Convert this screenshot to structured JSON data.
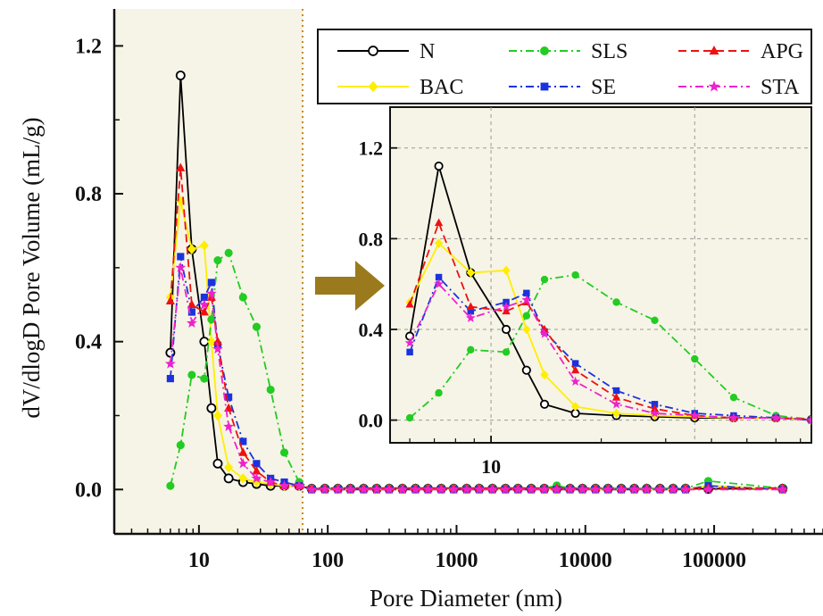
{
  "colors": {
    "shade": "#f6f4e6",
    "arrow": "#9a7a1c",
    "divider": "#c58a2a"
  },
  "chart_data": [
    {
      "type": "line",
      "title": "",
      "xlabel": "Pore Diameter (nm)",
      "ylabel": "dV/dlogD Pore Volume (mL/g)",
      "xscale": "log",
      "xlim": [
        2.2,
        700000
      ],
      "ylim": [
        -0.12,
        1.3
      ],
      "xticks": [
        10,
        100,
        1000,
        10000,
        100000
      ],
      "xtick_labels": [
        "10",
        "100",
        "1000",
        "10000",
        "100000"
      ],
      "yticks": [
        0.0,
        0.4,
        0.8,
        1.2
      ],
      "ytick_labels": [
        "0.0",
        "0.4",
        "0.8",
        "1.2"
      ],
      "shaded_region_x": [
        2.2,
        60
      ],
      "legend_position": "top-right",
      "legend": [
        "N",
        "SLS",
        "APG",
        "BAC",
        "SE",
        "STA"
      ],
      "series": [
        {
          "name": "N",
          "color": "#000000",
          "marker": "open-circle",
          "dash": "solid",
          "x": [
            6,
            7.2,
            8.8,
            11,
            12.5,
            14,
            17,
            22,
            28,
            36,
            46,
            60
          ],
          "y": [
            0.37,
            1.12,
            0.65,
            0.4,
            0.22,
            0.07,
            0.03,
            0.02,
            0.015,
            0.01,
            0.01,
            0.01
          ]
        },
        {
          "name": "BAC",
          "color": "#ffee00",
          "marker": "diamond",
          "dash": "solid",
          "x": [
            6,
            7.2,
            8.8,
            11,
            12.5,
            14,
            17,
            22,
            28,
            36,
            46,
            60
          ],
          "y": [
            0.52,
            0.78,
            0.65,
            0.66,
            0.4,
            0.2,
            0.06,
            0.03,
            0.02,
            0.015,
            0.01,
            0.01
          ]
        },
        {
          "name": "SLS",
          "color": "#22cc22",
          "marker": "circle",
          "dash": "dashdot",
          "x": [
            6,
            7.2,
            8.8,
            11,
            12.5,
            14,
            17,
            22,
            28,
            36,
            46,
            60
          ],
          "y": [
            0.01,
            0.12,
            0.31,
            0.3,
            0.46,
            0.62,
            0.64,
            0.52,
            0.44,
            0.27,
            0.1,
            0.02
          ]
        },
        {
          "name": "SE",
          "color": "#1a33dd",
          "marker": "square",
          "dash": "dashdot",
          "x": [
            6,
            7.2,
            8.8,
            11,
            12.5,
            14,
            17,
            22,
            28,
            36,
            46,
            60
          ],
          "y": [
            0.3,
            0.63,
            0.48,
            0.52,
            0.56,
            0.39,
            0.25,
            0.13,
            0.07,
            0.03,
            0.02,
            0.01
          ]
        },
        {
          "name": "APG",
          "color": "#ee1111",
          "marker": "triangle",
          "dash": "dashed",
          "x": [
            6,
            7.2,
            8.8,
            11,
            12.5,
            14,
            17,
            22,
            28,
            36,
            46,
            60
          ],
          "y": [
            0.51,
            0.87,
            0.5,
            0.48,
            0.52,
            0.4,
            0.22,
            0.1,
            0.05,
            0.02,
            0.01,
            0.01
          ]
        },
        {
          "name": "STA",
          "color": "#ee22cc",
          "marker": "star",
          "dash": "dashdot",
          "x": [
            6,
            7.2,
            8.8,
            11,
            12.5,
            14,
            17,
            22,
            28,
            36,
            46,
            60
          ],
          "y": [
            0.34,
            0.6,
            0.45,
            0.5,
            0.53,
            0.38,
            0.17,
            0.07,
            0.03,
            0.02,
            0.01,
            0.01
          ]
        }
      ],
      "tail": {
        "x": [
          75,
          95,
          120,
          150,
          190,
          240,
          300,
          380,
          480,
          600,
          760,
          950,
          1200,
          1500,
          1900,
          2400,
          3000,
          3800,
          4800,
          6000,
          7600,
          9500,
          12000,
          15000,
          19000,
          24000,
          30000,
          38000,
          48000,
          60000,
          90000,
          340000
        ],
        "offsets": [
          0.002,
          -0.001,
          0.003,
          0.0,
          0.004,
          -0.002
        ],
        "bumps": {
          "SLS": {
            "90000": 0.02,
            "6000": 0.008
          },
          "BAC": {
            "90000": 0.012
          },
          "SE": {
            "90000": 0.01
          }
        }
      }
    },
    {
      "type": "line",
      "title": "",
      "xscale": "log",
      "xlim": [
        5.3,
        75
      ],
      "ylim": [
        -0.1,
        1.38
      ],
      "xticks": [
        10
      ],
      "xtick_labels": [
        "10"
      ],
      "yticks": [
        0.0,
        0.4,
        0.8,
        1.2
      ],
      "ytick_labels": [
        "0.0",
        "0.4",
        "0.8",
        "1.2"
      ],
      "grid": true,
      "grid_x": [
        10,
        36
      ],
      "grid_y": [
        0.0,
        0.4,
        0.8,
        1.2
      ],
      "series_from": "same as main plot, x range 6-75 nm"
    }
  ]
}
